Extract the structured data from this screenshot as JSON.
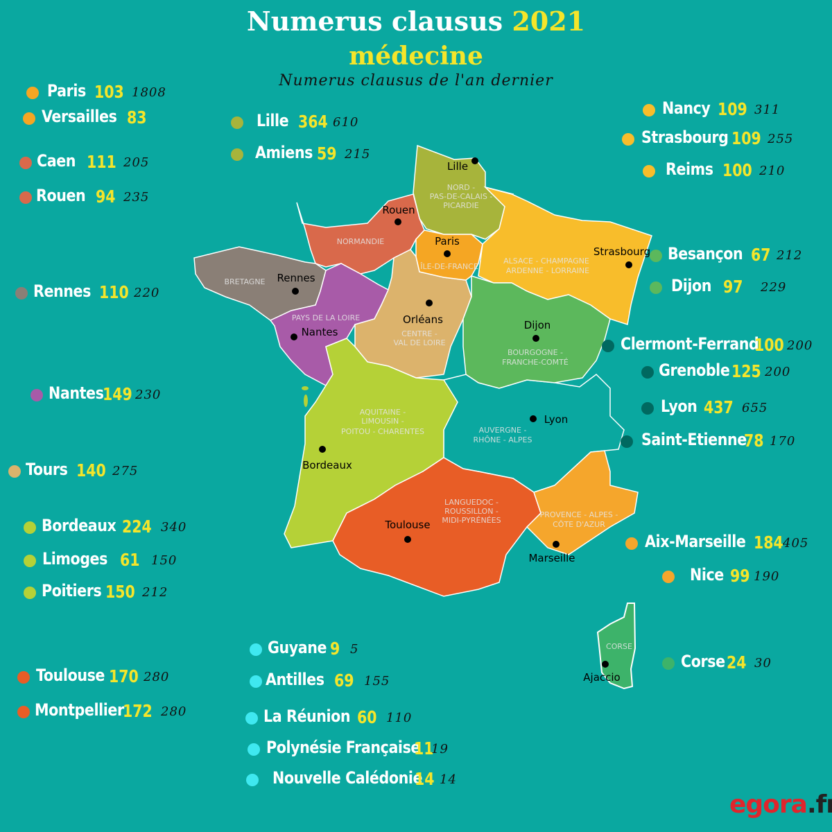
{
  "title": {
    "prefix": "Numerus clausus",
    "year": "2021",
    "subtitle": "médecine",
    "legend_note": "Numerus clausus de l'an dernier"
  },
  "colors": {
    "background": "#0aa8a0",
    "idf": "#f5a623",
    "normandie": "#d9694b",
    "bretagne": "#8a7f76",
    "pdl": "#a85ba8",
    "centre": "#dcb36c",
    "nord": "#a7b43b",
    "grandest": "#f8bd2b",
    "bfc": "#5cb85c",
    "ara": "#0d8d86",
    "naq": "#b5d137",
    "occitanie": "#e85d26",
    "paca": "#f5a62c",
    "corse": "#3db36a",
    "outremer": "#3fe8f0",
    "ara_dot": "#006960"
  },
  "regions": {
    "normandie": "NORMANDIE",
    "bretagne": "BRETAGNE",
    "nord": "NORD - PAS-DE-CALAIS - PICARDIE",
    "idf": "ÎLE-DE-FRANCE",
    "grandest": "ALSACE - CHAMPAGNE ARDENNE - LORRAINE",
    "pdl": "PAYS DE LA LOIRE",
    "centre": "CENTRE - VAL DE LOIRE",
    "bfc": "BOURGOGNE - FRANCHE-COMTÉ",
    "ara": "AUVERGNE - RHÔNE - ALPES",
    "naq": "AQUITAINE - LIMOUSIN - POITOU - CHARENTES",
    "occitanie": "LANGUEDOC - ROUSSILLON - MIDI-PYRÉNÉES",
    "paca": "PROVENCE - ALPES - CÔTE D'AZUR",
    "corse": "CORSE"
  },
  "cities": {
    "lille": "Lille",
    "rouen": "Rouen",
    "paris": "Paris",
    "strasbourg": "Strasbourg",
    "rennes": "Rennes",
    "nantes": "Nantes",
    "orleans": "Orléans",
    "dijon": "Dijon",
    "lyon": "Lyon",
    "bordeaux": "Bordeaux",
    "toulouse": "Toulouse",
    "marseille": "Marseille",
    "ajaccio": "Ajaccio"
  },
  "entries": [
    {
      "name": "Paris",
      "nc": "103",
      "prev": "1808",
      "color": "#f5a623"
    },
    {
      "name": "Versailles",
      "nc": "83",
      "prev": "",
      "color": "#f5a623"
    },
    {
      "name": "Caen",
      "nc": "111",
      "prev": "205",
      "color": "#d9694b"
    },
    {
      "name": "Rouen",
      "nc": "94",
      "prev": "235",
      "color": "#d9694b"
    },
    {
      "name": "Rennes",
      "nc": "110",
      "prev": "220",
      "color": "#8a7f76"
    },
    {
      "name": "Nantes",
      "nc": "149",
      "prev": "230",
      "color": "#a85ba8"
    },
    {
      "name": "Tours",
      "nc": "140",
      "prev": "275",
      "color": "#dcb36c"
    },
    {
      "name": "Bordeaux",
      "nc": "224",
      "prev": "340",
      "color": "#b5d137"
    },
    {
      "name": "Limoges",
      "nc": "61",
      "prev": "150",
      "color": "#b5d137"
    },
    {
      "name": "Poitiers",
      "nc": "150",
      "prev": "212",
      "color": "#b5d137"
    },
    {
      "name": "Toulouse",
      "nc": "170",
      "prev": "280",
      "color": "#e85d26"
    },
    {
      "name": "Montpellier",
      "nc": "172",
      "prev": "280",
      "color": "#e85d26"
    },
    {
      "name": "Lille",
      "nc": "364",
      "prev": "610",
      "color": "#a7b43b"
    },
    {
      "name": "Amiens",
      "nc": "59",
      "prev": "215",
      "color": "#a7b43b"
    },
    {
      "name": "Guyane",
      "nc": "9",
      "prev": "5",
      "color": "#3fe8f0"
    },
    {
      "name": "Antilles",
      "nc": "69",
      "prev": "155",
      "color": "#3fe8f0"
    },
    {
      "name": "La Réunion",
      "nc": "60",
      "prev": "110",
      "color": "#3fe8f0"
    },
    {
      "name": "Polynésie Française",
      "nc": "11",
      "prev": "19",
      "color": "#3fe8f0"
    },
    {
      "name": "Nouvelle Calédonie",
      "nc": "14",
      "prev": "14",
      "color": "#3fe8f0"
    },
    {
      "name": "Nancy",
      "nc": "109",
      "prev": "311",
      "color": "#f8bd2b"
    },
    {
      "name": "Strasbourg",
      "nc": "109",
      "prev": "255",
      "color": "#f8bd2b"
    },
    {
      "name": "Reims",
      "nc": "100",
      "prev": "210",
      "color": "#f8bd2b"
    },
    {
      "name": "Besançon",
      "nc": "67",
      "prev": "212",
      "color": "#5cb85c"
    },
    {
      "name": "Dijon",
      "nc": "97",
      "prev": "229",
      "color": "#5cb85c"
    },
    {
      "name": "Clermont-Ferrand",
      "nc": "100",
      "prev": "200",
      "color": "#006960"
    },
    {
      "name": "Grenoble",
      "nc": "125",
      "prev": "200",
      "color": "#006960"
    },
    {
      "name": "Lyon",
      "nc": "437",
      "prev": "655",
      "color": "#006960"
    },
    {
      "name": "Saint-Etienne",
      "nc": "78",
      "prev": "170",
      "color": "#006960"
    },
    {
      "name": "Aix-Marseille",
      "nc": "184",
      "prev": "405",
      "color": "#f5a62c"
    },
    {
      "name": "Nice",
      "nc": "99",
      "prev": "190",
      "color": "#f5a62c"
    },
    {
      "name": "Corse",
      "nc": "24",
      "prev": "30",
      "color": "#3db36a"
    }
  ],
  "logo": {
    "part1": "egora",
    "part2": ".fr"
  }
}
